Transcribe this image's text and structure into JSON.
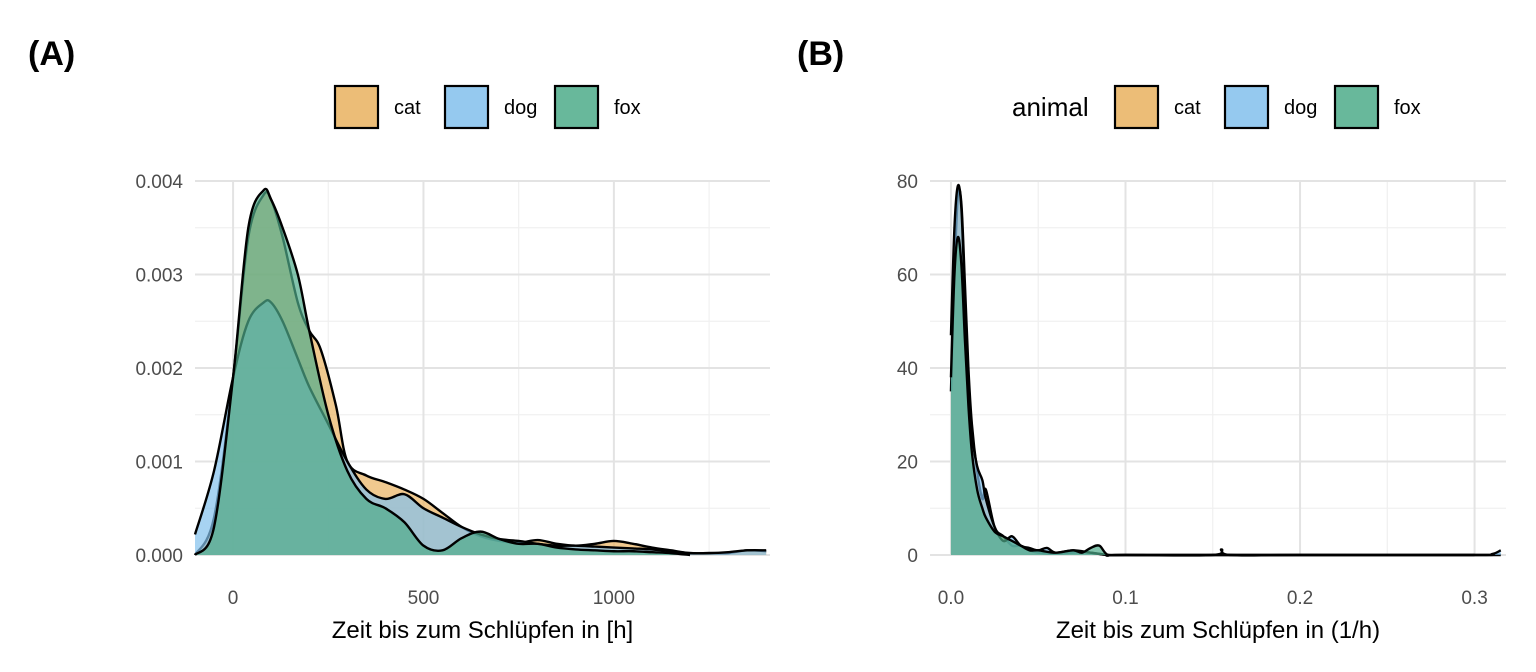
{
  "colors": {
    "cat": "#E9B25F",
    "dog": "#82C0EC",
    "fox": "#4EAB8A"
  },
  "chart_data": [
    {
      "panel_label": "(A)",
      "type": "area",
      "xlabel": "Zeit bis zum Schlüpfen in [h]",
      "ylabel": "",
      "xlim": [
        -100,
        1410
      ],
      "ylim": [
        0,
        0.004
      ],
      "xticks": [
        0,
        500,
        1000
      ],
      "xtick_labels": [
        "0",
        "500",
        "1000"
      ],
      "yticks": [
        0,
        0.001,
        0.002,
        0.003,
        0.004
      ],
      "ytick_labels": [
        "0.000",
        "0.001",
        "0.002",
        "0.003",
        "0.004"
      ],
      "grid": true,
      "legend": {
        "title": "",
        "position": "top",
        "entries": [
          "cat",
          "dog",
          "fox"
        ]
      },
      "series": [
        {
          "name": "cat",
          "x": [
            -100,
            -50,
            0,
            40,
            80,
            100,
            130,
            170,
            200,
            230,
            270,
            300,
            350,
            400,
            450,
            500,
            550,
            600,
            650,
            700,
            750,
            800,
            850,
            900,
            950,
            1000,
            1050,
            1100,
            1150,
            1200,
            1250,
            1300,
            1350,
            1400
          ],
          "y": [
            0,
            0.0004,
            0.0019,
            0.0034,
            0.00385,
            0.0038,
            0.0034,
            0.0027,
            0.0024,
            0.0022,
            0.0016,
            0.001,
            0.00085,
            0.00078,
            0.0007,
            0.0006,
            0.00045,
            0.0003,
            0.0002,
            0.00015,
            0.00013,
            0.00016,
            0.00012,
            0.0001,
            0.00012,
            0.00015,
            0.00012,
            8e-05,
            5e-05,
            2e-05,
            2e-05,
            2e-05,
            5e-05,
            4e-05
          ]
        },
        {
          "name": "dog",
          "x": [
            -100,
            -50,
            0,
            40,
            80,
            100,
            130,
            170,
            200,
            250,
            300,
            350,
            400,
            450,
            500,
            550,
            600,
            650,
            700,
            750,
            800,
            850,
            900,
            950,
            1000,
            1050,
            1100,
            1150,
            1200,
            1250,
            1300,
            1350,
            1400
          ],
          "y": [
            0.00022,
            0.0009,
            0.0019,
            0.0025,
            0.0027,
            0.0027,
            0.0025,
            0.0021,
            0.0018,
            0.0014,
            0.001,
            0.0007,
            0.0006,
            0.00065,
            0.0005,
            0.0004,
            0.0003,
            0.00022,
            0.00017,
            0.00015,
            0.00012,
            0.0001,
            0.0001,
            9e-05,
            8e-05,
            7e-05,
            6e-05,
            4e-05,
            2e-05,
            2e-05,
            3e-05,
            5e-05,
            5e-05
          ]
        },
        {
          "name": "fox",
          "x": [
            -100,
            -50,
            0,
            40,
            80,
            100,
            130,
            170,
            200,
            250,
            300,
            350,
            400,
            450,
            500,
            550,
            600,
            650,
            700,
            750,
            800,
            850,
            900,
            950,
            1000,
            1050,
            1100,
            1150,
            1200
          ],
          "y": [
            0,
            0.0003,
            0.0019,
            0.0035,
            0.0039,
            0.0038,
            0.0035,
            0.003,
            0.0024,
            0.0015,
            0.0009,
            0.0006,
            0.0005,
            0.00035,
            0.0001,
            5e-05,
            0.00018,
            0.00025,
            0.00017,
            0.00012,
            0.00012,
            8e-05,
            6e-05,
            5e-05,
            4e-05,
            4e-05,
            3e-05,
            2e-05,
            0
          ]
        }
      ]
    },
    {
      "panel_label": "(B)",
      "type": "area",
      "xlabel": "Zeit bis zum Schlüpfen in (1/h)",
      "ylabel": "",
      "xlim": [
        -0.012,
        0.318
      ],
      "ylim": [
        0,
        80
      ],
      "xticks": [
        0,
        0.1,
        0.2,
        0.3
      ],
      "xtick_labels": [
        "0.0",
        "0.1",
        "0.2",
        "0.3"
      ],
      "yticks": [
        0,
        20,
        40,
        60,
        80
      ],
      "ytick_labels": [
        "0",
        "20",
        "40",
        "60",
        "80"
      ],
      "grid": true,
      "legend": {
        "title": "animal",
        "position": "top",
        "entries": [
          "cat",
          "dog",
          "fox"
        ]
      },
      "series": [
        {
          "name": "cat",
          "x": [
            0,
            0.002,
            0.004,
            0.006,
            0.008,
            0.01,
            0.012,
            0.015,
            0.018,
            0.02,
            0.025,
            0.03,
            0.035,
            0.04,
            0.045,
            0.05,
            0.06,
            0.07,
            0.08,
            0.09,
            0.1,
            0.15,
            0.155,
            0.16,
            0.2,
            0.3,
            0.315
          ],
          "y": [
            35,
            60,
            77,
            75,
            58,
            40,
            28,
            18,
            12,
            14,
            6,
            4,
            2,
            2,
            1,
            0.5,
            0.3,
            0.5,
            0.5,
            0,
            0,
            0,
            1.2,
            0,
            0,
            0,
            0
          ]
        },
        {
          "name": "dog",
          "x": [
            0,
            0.002,
            0.004,
            0.006,
            0.008,
            0.01,
            0.012,
            0.015,
            0.018,
            0.02,
            0.025,
            0.03,
            0.035,
            0.04,
            0.045,
            0.05,
            0.055,
            0.06,
            0.07,
            0.08,
            0.09,
            0.1,
            0.2,
            0.3,
            0.31,
            0.315
          ],
          "y": [
            47,
            70,
            79,
            74,
            55,
            38,
            26,
            19,
            16,
            12,
            6,
            3,
            4,
            2,
            1.5,
            1,
            1.5,
            0.5,
            1,
            0.5,
            0,
            0,
            0,
            0,
            0.2,
            1
          ]
        },
        {
          "name": "fox",
          "x": [
            0,
            0.002,
            0.004,
            0.006,
            0.008,
            0.01,
            0.012,
            0.015,
            0.018,
            0.02,
            0.025,
            0.03,
            0.035,
            0.04,
            0.045,
            0.05,
            0.06,
            0.07,
            0.075,
            0.08,
            0.085,
            0.09,
            0.1,
            0.2,
            0.3
          ],
          "y": [
            38,
            60,
            68,
            62,
            46,
            32,
            22,
            14,
            10,
            8,
            5,
            4,
            3,
            2,
            1,
            1,
            0.5,
            1,
            0.5,
            1.5,
            2,
            0,
            0,
            0,
            0
          ]
        }
      ]
    }
  ]
}
